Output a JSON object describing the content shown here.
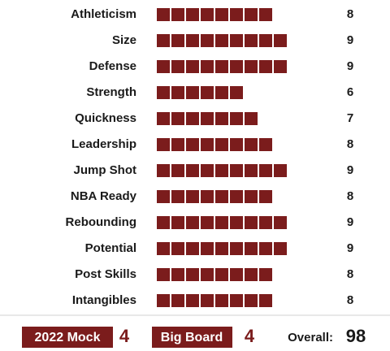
{
  "ratings": [
    {
      "label": "Athleticism",
      "value": 8
    },
    {
      "label": "Size",
      "value": 9
    },
    {
      "label": "Defense",
      "value": 9
    },
    {
      "label": "Strength",
      "value": 6
    },
    {
      "label": "Quickness",
      "value": 7
    },
    {
      "label": "Leadership",
      "value": 8
    },
    {
      "label": "Jump Shot",
      "value": 9
    },
    {
      "label": "NBA Ready",
      "value": 8
    },
    {
      "label": "Rebounding",
      "value": 9
    },
    {
      "label": "Potential",
      "value": 9
    },
    {
      "label": "Post Skills",
      "value": 8
    },
    {
      "label": "Intangibles",
      "value": 8
    }
  ],
  "footer": {
    "mock": {
      "label": "2022 Mock",
      "value": 4
    },
    "board": {
      "label": "Big Board",
      "value": 4
    },
    "overall": {
      "label": "Overall:",
      "value": 98
    }
  }
}
